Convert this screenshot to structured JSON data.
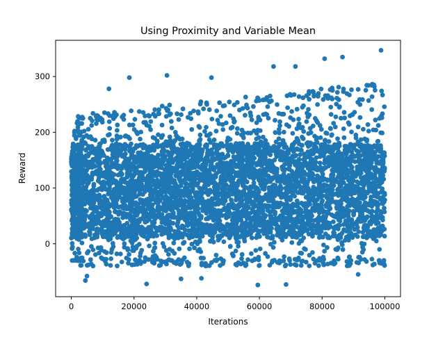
{
  "chart_data": {
    "type": "scatter",
    "title": "Using Proximity and Variable Mean",
    "xlabel": "Iterations",
    "ylabel": "Reward",
    "xlim": [
      -5000,
      105000
    ],
    "ylim": [
      -95,
      365
    ],
    "x_ticks": [
      0,
      20000,
      40000,
      60000,
      80000,
      100000
    ],
    "x_tick_labels": [
      "0",
      "20000",
      "40000",
      "60000",
      "80000",
      "100000"
    ],
    "y_ticks": [
      0,
      100,
      200,
      300
    ],
    "y_tick_labels": [
      "0",
      "100",
      "200",
      "300"
    ],
    "grid": false,
    "legend": "none",
    "marker_color": "#1f77b4",
    "series": [
      {
        "x": [
          0,
          100000
        ],
        "y_core_band": [
          10,
          180
        ],
        "y_typical_min": [
          -40,
          -40
        ],
        "y_typical_max": [
          230,
          290
        ],
        "n_points": 100000,
        "note": "dense scatter; one point per iteration"
      }
    ],
    "notable_points": [
      {
        "x": 98800,
        "y": 347
      },
      {
        "x": 86500,
        "y": 335
      },
      {
        "x": 80800,
        "y": 332
      },
      {
        "x": 64500,
        "y": 318
      },
      {
        "x": 71500,
        "y": 318
      },
      {
        "x": 30500,
        "y": 302
      },
      {
        "x": 18500,
        "y": 298
      },
      {
        "x": 44700,
        "y": 298
      },
      {
        "x": 12000,
        "y": 278
      },
      {
        "x": 4500,
        "y": -66
      },
      {
        "x": 5000,
        "y": -58
      },
      {
        "x": 24000,
        "y": -72
      },
      {
        "x": 59500,
        "y": -74
      },
      {
        "x": 68500,
        "y": -73
      },
      {
        "x": 35000,
        "y": -63
      },
      {
        "x": 41500,
        "y": -62
      },
      {
        "x": 91500,
        "y": -55
      }
    ]
  }
}
